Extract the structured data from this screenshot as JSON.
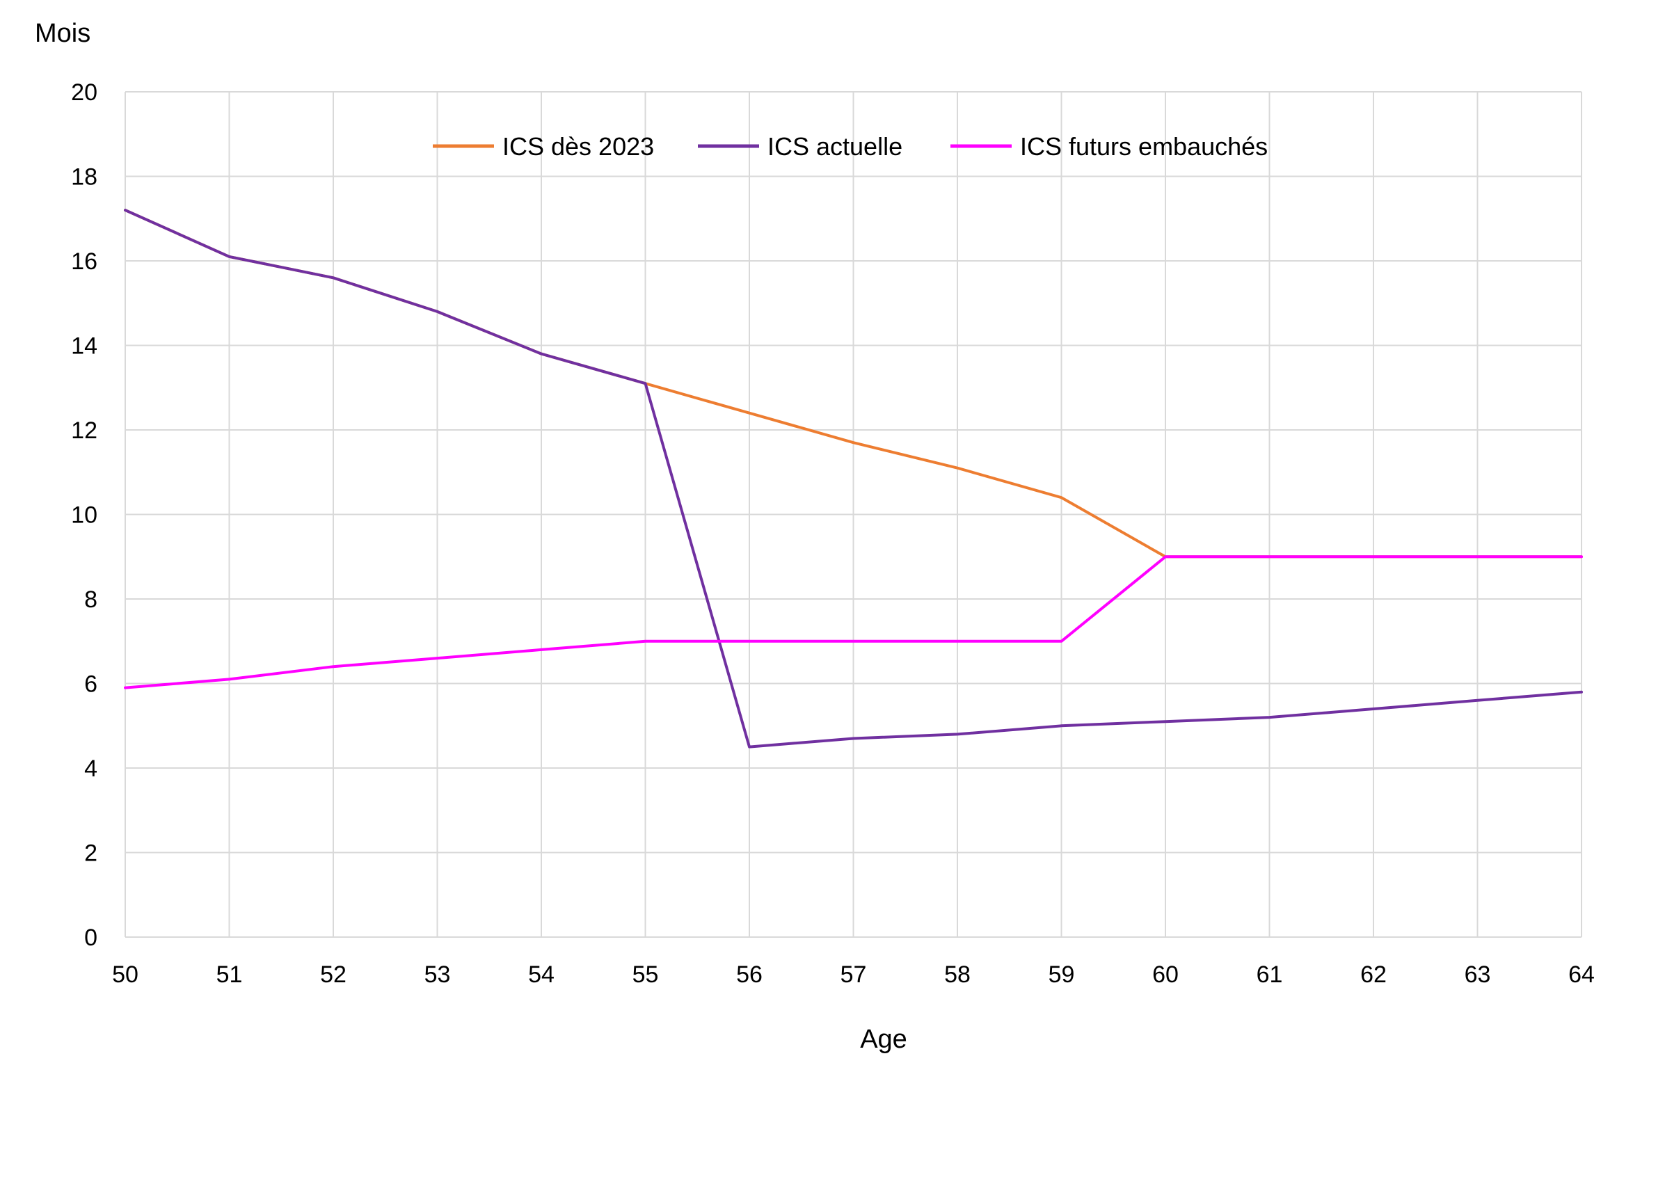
{
  "chart_data": {
    "type": "line",
    "ylabel": "Mois",
    "xlabel": "Age",
    "x": [
      50,
      51,
      52,
      53,
      54,
      55,
      56,
      57,
      58,
      59,
      60,
      61,
      62,
      63,
      64
    ],
    "xlim": [
      50,
      64
    ],
    "ylim": [
      0,
      20
    ],
    "yticks": [
      0,
      2,
      4,
      6,
      8,
      10,
      12,
      14,
      16,
      18,
      20
    ],
    "grid": true,
    "legend_position": "top-center",
    "series": [
      {
        "name": "ICS dès 2023",
        "color": "#ED7D31",
        "values": [
          17.2,
          16.1,
          15.6,
          14.8,
          13.8,
          13.1,
          12.4,
          11.7,
          11.1,
          10.4,
          9.0,
          9.0,
          9.0,
          9.0,
          9.0
        ]
      },
      {
        "name": "ICS actuelle",
        "color": "#7030A0",
        "values": [
          17.2,
          16.1,
          15.6,
          14.8,
          13.8,
          13.1,
          4.5,
          4.7,
          4.8,
          5.0,
          5.1,
          5.2,
          5.4,
          5.6,
          5.8
        ]
      },
      {
        "name": "ICS futurs embauchés",
        "color": "#FF00FF",
        "values": [
          5.9,
          6.1,
          6.4,
          6.6,
          6.8,
          7.0,
          7.0,
          7.0,
          7.0,
          7.0,
          9.0,
          9.0,
          9.0,
          9.0,
          9.0
        ]
      }
    ]
  }
}
